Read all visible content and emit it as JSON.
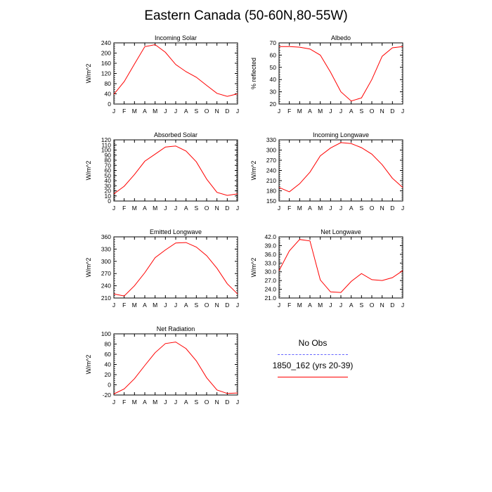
{
  "title": "Eastern Canada (50-60N,80-55W)",
  "legend": {
    "obs_label": "No Obs",
    "obs_color": "#0000ff",
    "model_label": "1850_162 (yrs 20-39)",
    "model_color": "#ff0000"
  },
  "chart_data": [
    {
      "type": "line",
      "title": "Incoming Solar",
      "ylabel": "W/m^2",
      "categories": [
        "J",
        "F",
        "M",
        "A",
        "M",
        "J",
        "J",
        "A",
        "S",
        "O",
        "N",
        "D",
        "J"
      ],
      "ylim": [
        0,
        240
      ],
      "yticks": [
        "0",
        "40",
        "80",
        "120",
        "160",
        "200",
        "240"
      ],
      "series": [
        {
          "values": [
            38,
            88,
            157,
            225,
            233,
            203,
            155,
            127,
            105,
            73,
            42,
            30,
            40
          ]
        }
      ]
    },
    {
      "type": "line",
      "title": "Albedo",
      "ylabel": "% reflected",
      "categories": [
        "J",
        "F",
        "M",
        "A",
        "M",
        "J",
        "J",
        "A",
        "S",
        "O",
        "N",
        "D",
        "J"
      ],
      "ylim": [
        20,
        70
      ],
      "yticks": [
        "20",
        "30",
        "40",
        "50",
        "60",
        "70"
      ],
      "series": [
        {
          "values": [
            67,
            67,
            66.5,
            65,
            60,
            46,
            30,
            22.5,
            25,
            40,
            59,
            66,
            67
          ]
        }
      ]
    },
    {
      "type": "line",
      "title": "Absorbed Solar",
      "ylabel": "W/m^2",
      "categories": [
        "J",
        "F",
        "M",
        "A",
        "M",
        "J",
        "J",
        "A",
        "S",
        "O",
        "N",
        "D",
        "J"
      ],
      "ylim": [
        0,
        120
      ],
      "yticks": [
        "0",
        "10",
        "20",
        "30",
        "40",
        "50",
        "60",
        "70",
        "80",
        "90",
        "100",
        "110",
        "120"
      ],
      "series": [
        {
          "values": [
            14,
            29,
            52,
            78,
            92,
            106,
            108,
            98,
            77,
            43,
            17,
            11,
            14
          ]
        }
      ]
    },
    {
      "type": "line",
      "title": "Incoming Longwave",
      "ylabel": "W/m^2",
      "categories": [
        "J",
        "F",
        "M",
        "A",
        "M",
        "J",
        "J",
        "A",
        "S",
        "O",
        "N",
        "D",
        "J"
      ],
      "ylim": [
        150,
        330
      ],
      "yticks": [
        "150",
        "180",
        "210",
        "240",
        "270",
        "300",
        "330"
      ],
      "series": [
        {
          "values": [
            190,
            177,
            201,
            235,
            283,
            306,
            322,
            319,
            307,
            288,
            257,
            217,
            190
          ]
        }
      ]
    },
    {
      "type": "line",
      "title": "Emitted Longwave",
      "ylabel": "W/m^2",
      "categories": [
        "J",
        "F",
        "M",
        "A",
        "M",
        "J",
        "J",
        "A",
        "S",
        "O",
        "N",
        "D",
        "J"
      ],
      "ylim": [
        210,
        360
      ],
      "yticks": [
        "210",
        "240",
        "270",
        "300",
        "330",
        "360"
      ],
      "series": [
        {
          "values": [
            220,
            215,
            240,
            272,
            309,
            328,
            345,
            346,
            335,
            314,
            283,
            245,
            220
          ]
        }
      ]
    },
    {
      "type": "line",
      "title": "Net Longwave",
      "ylabel": "W/m^2",
      "categories": [
        "J",
        "F",
        "M",
        "A",
        "M",
        "J",
        "J",
        "A",
        "S",
        "O",
        "N",
        "D",
        "J"
      ],
      "ylim": [
        21,
        42
      ],
      "yticks": [
        "21.0",
        "24.0",
        "27.0",
        "30.0",
        "33.0",
        "36.0",
        "39.0",
        "42.0"
      ],
      "series": [
        {
          "values": [
            30.4,
            37.2,
            41.1,
            40.6,
            27.2,
            23.1,
            22.9,
            26.7,
            29.4,
            27.3,
            27.0,
            28.0,
            30.4
          ]
        }
      ]
    },
    {
      "type": "line",
      "title": "Net Radiation",
      "ylabel": "W/m^2",
      "categories": [
        "J",
        "F",
        "M",
        "A",
        "M",
        "J",
        "J",
        "A",
        "S",
        "O",
        "N",
        "D",
        "J"
      ],
      "ylim": [
        -20,
        100
      ],
      "yticks": [
        "-20",
        "0",
        "20",
        "40",
        "60",
        "80",
        "100"
      ],
      "series": [
        {
          "values": [
            -18,
            -8,
            12,
            38,
            63,
            81,
            84,
            71,
            47,
            14,
            -10,
            -17,
            -16
          ]
        }
      ]
    }
  ]
}
